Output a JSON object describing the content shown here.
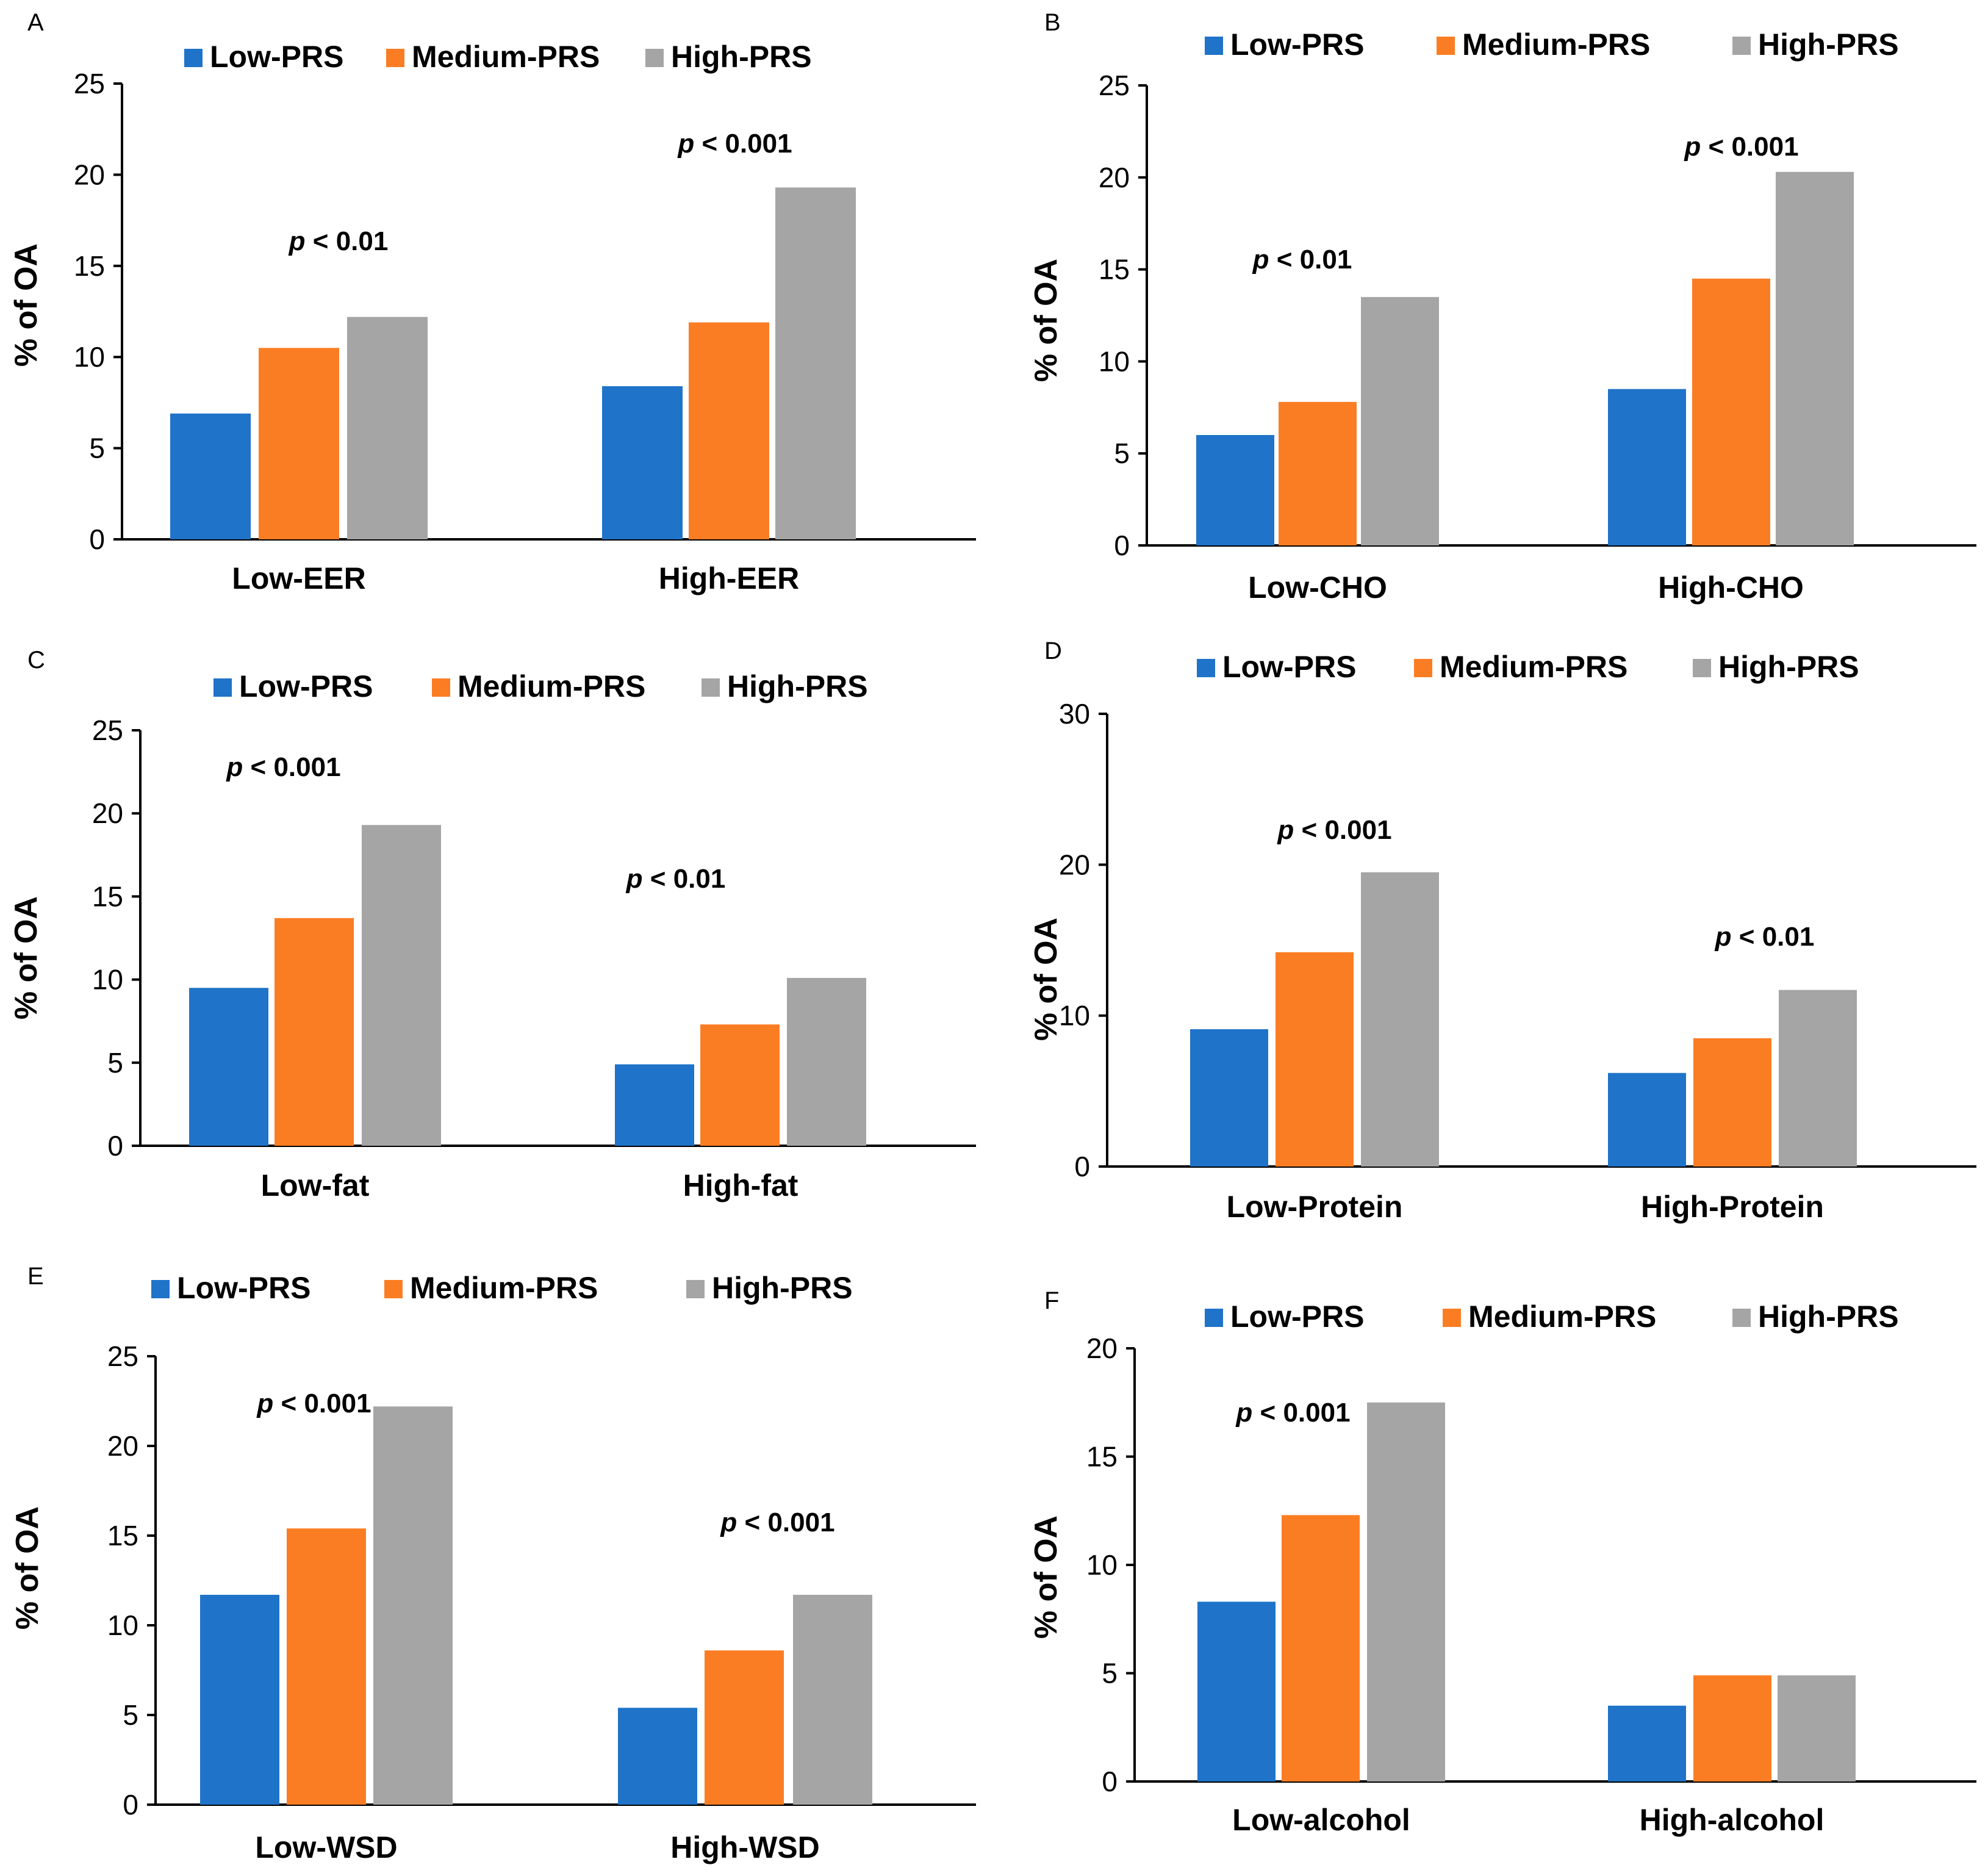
{
  "chart_data": [
    {
      "panel": "A",
      "type": "bar",
      "ylabel": "% of OA",
      "ylim": [
        0,
        25
      ],
      "yticks": [
        0,
        5,
        10,
        15,
        20,
        25
      ],
      "legend": [
        "Low-PRS",
        "Medium-PRS",
        "High-PRS"
      ],
      "categories": [
        "Low-EER",
        "High-EER"
      ],
      "series": [
        {
          "name": "Low-PRS",
          "values": [
            6.9,
            8.4
          ]
        },
        {
          "name": "Medium-PRS",
          "values": [
            10.5,
            11.9
          ]
        },
        {
          "name": "High-PRS",
          "values": [
            12.2,
            19.3
          ]
        }
      ],
      "annotations": [
        {
          "category": "Low-EER",
          "italic": "p",
          "text": " < 0.01"
        },
        {
          "category": "High-EER",
          "italic": "p",
          "text": " < 0.001"
        }
      ]
    },
    {
      "panel": "B",
      "type": "bar",
      "ylabel": "% of OA",
      "ylim": [
        0,
        25
      ],
      "yticks": [
        0,
        5,
        10,
        15,
        20,
        25
      ],
      "legend": [
        "Low-PRS",
        "Medium-PRS",
        "High-PRS"
      ],
      "categories": [
        "Low-CHO",
        "High-CHO"
      ],
      "series": [
        {
          "name": "Low-PRS",
          "values": [
            6.0,
            8.5
          ]
        },
        {
          "name": "Medium-PRS",
          "values": [
            7.8,
            14.5
          ]
        },
        {
          "name": "High-PRS",
          "values": [
            13.5,
            20.3
          ]
        }
      ],
      "annotations": [
        {
          "category": "Low-CHO",
          "italic": "p",
          "text": " < 0.01"
        },
        {
          "category": "High-CHO",
          "italic": "p",
          "text": " < 0.001"
        }
      ]
    },
    {
      "panel": "C",
      "type": "bar",
      "ylabel": "% of OA",
      "ylim": [
        0,
        25
      ],
      "yticks": [
        0,
        5,
        10,
        15,
        20,
        25
      ],
      "legend": [
        "Low-PRS",
        "Medium-PRS",
        "High-PRS"
      ],
      "categories": [
        "Low-fat",
        "High-fat"
      ],
      "series": [
        {
          "name": "Low-PRS",
          "values": [
            9.5,
            4.9
          ]
        },
        {
          "name": "Medium-PRS",
          "values": [
            13.7,
            7.3
          ]
        },
        {
          "name": "High-PRS",
          "values": [
            19.3,
            10.1
          ]
        }
      ],
      "annotations": [
        {
          "category": "Low-fat",
          "italic": "p",
          "text": " < 0.001"
        },
        {
          "category": "High-fat",
          "italic": "p",
          "text": " < 0.01"
        }
      ]
    },
    {
      "panel": "D",
      "type": "bar",
      "ylabel": "% of OA",
      "ylim": [
        0,
        30
      ],
      "yticks": [
        0,
        10,
        20,
        30
      ],
      "legend": [
        "Low-PRS",
        "Medium-PRS",
        "High-PRS"
      ],
      "categories": [
        "Low-Protein",
        "High-Protein"
      ],
      "series": [
        {
          "name": "Low-PRS",
          "values": [
            9.1,
            6.2
          ]
        },
        {
          "name": "Medium-PRS",
          "values": [
            14.2,
            8.5
          ]
        },
        {
          "name": "High-PRS",
          "values": [
            19.5,
            11.7
          ]
        }
      ],
      "annotations": [
        {
          "category": "Low-Protein",
          "italic": "p",
          "text": " < 0.001"
        },
        {
          "category": "High-Protein",
          "italic": "p",
          "text": " < 0.01"
        }
      ]
    },
    {
      "panel": "E",
      "type": "bar",
      "ylabel": "% of OA",
      "ylim": [
        0,
        25
      ],
      "yticks": [
        0,
        5,
        10,
        15,
        20,
        25
      ],
      "legend": [
        "Low-PRS",
        "Medium-PRS",
        "High-PRS"
      ],
      "categories": [
        "Low-WSD",
        "High-WSD"
      ],
      "series": [
        {
          "name": "Low-PRS",
          "values": [
            11.7,
            5.4
          ]
        },
        {
          "name": "Medium-PRS",
          "values": [
            15.4,
            8.6
          ]
        },
        {
          "name": "High-PRS",
          "values": [
            22.2,
            11.7
          ]
        }
      ],
      "annotations": [
        {
          "category": "Low-WSD",
          "italic": "p",
          "text": " < 0.001"
        },
        {
          "category": "High-WSD",
          "italic": "p",
          "text": " < 0.001"
        }
      ]
    },
    {
      "panel": "F",
      "type": "bar",
      "ylabel": "% of OA",
      "ylim": [
        0,
        20
      ],
      "yticks": [
        0,
        5,
        10,
        15,
        20
      ],
      "legend": [
        "Low-PRS",
        "Medium-PRS",
        "High-PRS"
      ],
      "categories": [
        "Low-alcohol",
        "High-alcohol"
      ],
      "series": [
        {
          "name": "Low-PRS",
          "values": [
            8.3,
            3.5
          ]
        },
        {
          "name": "Medium-PRS",
          "values": [
            12.3,
            4.9
          ]
        },
        {
          "name": "High-PRS",
          "values": [
            17.5,
            4.9
          ]
        }
      ],
      "annotations": [
        {
          "category": "Low-alcohol",
          "italic": "p",
          "text": " < 0.001"
        }
      ]
    }
  ],
  "colors": {
    "Low-PRS": "#1f73c8",
    "Medium-PRS": "#fb7d23",
    "High-PRS": "#a5a5a5"
  }
}
